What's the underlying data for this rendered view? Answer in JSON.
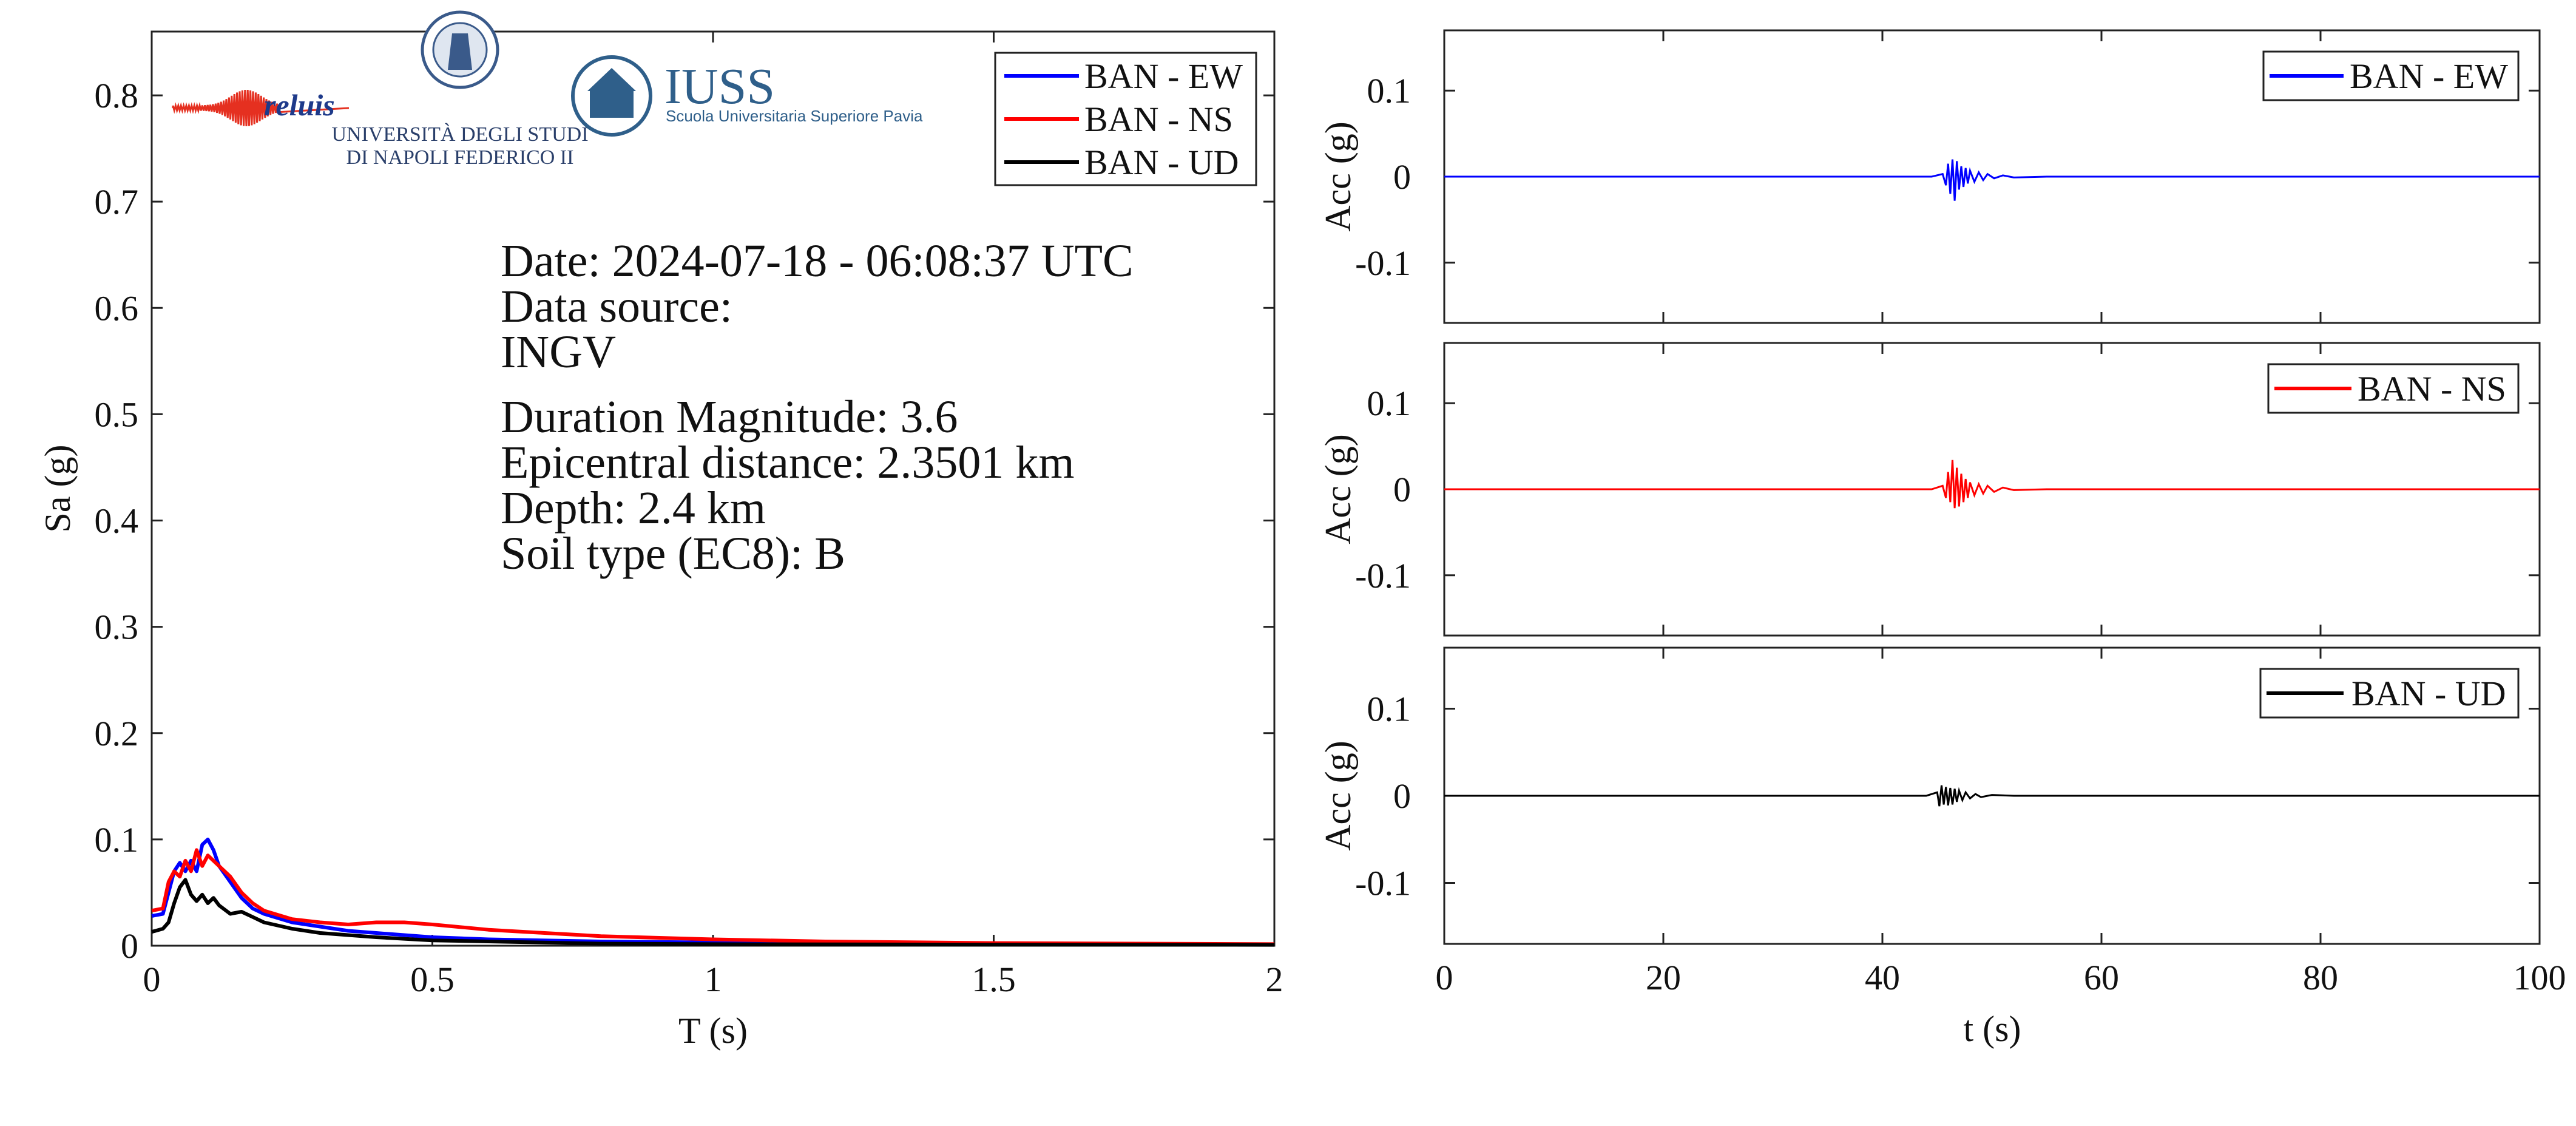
{
  "chart_data": [
    {
      "type": "line",
      "xlabel": "T (s)",
      "ylabel": "Sa (g)",
      "xlim": [
        0,
        2
      ],
      "ylim": [
        0,
        0.86
      ],
      "xticks": [
        0,
        0.5,
        1,
        1.5,
        2
      ],
      "xtick_labels": [
        "0",
        "0.5",
        "1",
        "1.5",
        "2"
      ],
      "yticks": [
        0,
        0.1,
        0.2,
        0.3,
        0.4,
        0.5,
        0.6,
        0.7,
        0.8
      ],
      "ytick_labels": [
        "0",
        "0.1",
        "0.2",
        "0.3",
        "0.4",
        "0.5",
        "0.6",
        "0.7",
        "0.8"
      ],
      "grid": false,
      "legend_position": "top-right",
      "series": [
        {
          "name": "BAN - EW",
          "color": "#0000ff",
          "x": [
            0,
            0.02,
            0.04,
            0.05,
            0.06,
            0.07,
            0.08,
            0.09,
            0.1,
            0.11,
            0.12,
            0.14,
            0.16,
            0.18,
            0.2,
            0.25,
            0.3,
            0.35,
            0.4,
            0.5,
            0.6,
            0.8,
            1.0,
            1.2,
            1.5,
            2.0
          ],
          "y": [
            0.028,
            0.03,
            0.07,
            0.078,
            0.07,
            0.08,
            0.07,
            0.095,
            0.1,
            0.09,
            0.075,
            0.06,
            0.045,
            0.035,
            0.03,
            0.022,
            0.018,
            0.014,
            0.012,
            0.008,
            0.006,
            0.004,
            0.003,
            0.002,
            0.0015,
            0.001
          ]
        },
        {
          "name": "BAN - NS",
          "color": "#ff0000",
          "x": [
            0,
            0.02,
            0.03,
            0.04,
            0.05,
            0.06,
            0.07,
            0.08,
            0.09,
            0.1,
            0.12,
            0.14,
            0.16,
            0.18,
            0.2,
            0.25,
            0.3,
            0.35,
            0.4,
            0.45,
            0.5,
            0.6,
            0.7,
            0.8,
            1.0,
            1.2,
            1.5,
            2.0
          ],
          "y": [
            0.033,
            0.035,
            0.06,
            0.07,
            0.065,
            0.08,
            0.07,
            0.09,
            0.075,
            0.085,
            0.075,
            0.065,
            0.05,
            0.04,
            0.033,
            0.025,
            0.022,
            0.02,
            0.022,
            0.022,
            0.02,
            0.015,
            0.012,
            0.009,
            0.006,
            0.004,
            0.0025,
            0.0015
          ]
        },
        {
          "name": "BAN - UD",
          "color": "#000000",
          "x": [
            0,
            0.02,
            0.03,
            0.04,
            0.05,
            0.06,
            0.07,
            0.08,
            0.09,
            0.1,
            0.11,
            0.12,
            0.14,
            0.16,
            0.18,
            0.2,
            0.25,
            0.3,
            0.35,
            0.4,
            0.5,
            0.6,
            0.8,
            1.0,
            1.5,
            2.0
          ],
          "y": [
            0.013,
            0.016,
            0.022,
            0.04,
            0.055,
            0.062,
            0.048,
            0.042,
            0.048,
            0.04,
            0.045,
            0.038,
            0.03,
            0.032,
            0.027,
            0.022,
            0.016,
            0.012,
            0.01,
            0.008,
            0.005,
            0.004,
            0.002,
            0.0015,
            0.001,
            0.0008
          ]
        }
      ]
    },
    {
      "type": "line",
      "xlabel": "",
      "ylabel": "Acc (g)",
      "xlim": [
        0,
        100
      ],
      "ylim": [
        -0.17,
        0.17
      ],
      "yticks": [
        -0.1,
        0,
        0.1
      ],
      "ytick_labels": [
        "-0.1",
        "0",
        "0.1"
      ],
      "legend_position": "top-right",
      "series": [
        {
          "name": "BAN - EW",
          "color": "#0000ff",
          "t": [
            0,
            44.5,
            45.5,
            45.8,
            46.0,
            46.2,
            46.4,
            46.6,
            46.8,
            47.0,
            47.2,
            47.4,
            47.6,
            47.8,
            48.0,
            48.4,
            48.8,
            49.2,
            49.6,
            50.2,
            51.0,
            52.0,
            55.0,
            100
          ],
          "acc": [
            0,
            0,
            0.003,
            -0.01,
            0.015,
            -0.02,
            0.02,
            -0.028,
            0.018,
            -0.015,
            0.012,
            -0.012,
            0.01,
            -0.008,
            0.007,
            -0.006,
            0.005,
            -0.004,
            0.003,
            -0.002,
            0.0015,
            -0.001,
            0,
            0
          ]
        }
      ]
    },
    {
      "type": "line",
      "xlabel": "",
      "ylabel": "Acc (g)",
      "xlim": [
        0,
        100
      ],
      "ylim": [
        -0.17,
        0.17
      ],
      "yticks": [
        -0.1,
        0,
        0.1
      ],
      "ytick_labels": [
        "-0.1",
        "0",
        "0.1"
      ],
      "legend_position": "top-right",
      "series": [
        {
          "name": "BAN - NS",
          "color": "#ff0000",
          "t": [
            0,
            44.5,
            45.5,
            45.8,
            46.0,
            46.2,
            46.4,
            46.6,
            46.8,
            47.0,
            47.2,
            47.4,
            47.6,
            47.8,
            48.0,
            48.4,
            48.8,
            49.2,
            49.6,
            50.2,
            51.0,
            52.0,
            55.0,
            100
          ],
          "acc": [
            0,
            0,
            0.004,
            -0.01,
            0.02,
            -0.015,
            0.034,
            -0.022,
            0.025,
            -0.02,
            0.018,
            -0.015,
            0.012,
            -0.01,
            0.008,
            -0.007,
            0.006,
            -0.005,
            0.004,
            -0.003,
            0.002,
            -0.001,
            0,
            0
          ]
        }
      ]
    },
    {
      "type": "line",
      "xlabel": "t (s)",
      "ylabel": "Acc (g)",
      "xlim": [
        0,
        100
      ],
      "ylim": [
        -0.17,
        0.17
      ],
      "xticks": [
        0,
        20,
        40,
        60,
        80,
        100
      ],
      "xtick_labels": [
        "0",
        "20",
        "40",
        "60",
        "80",
        "100"
      ],
      "yticks": [
        -0.1,
        0,
        0.1
      ],
      "ytick_labels": [
        "-0.1",
        "0",
        "0.1"
      ],
      "legend_position": "top-right",
      "series": [
        {
          "name": "BAN - UD",
          "color": "#000000",
          "t": [
            0,
            44.0,
            45.0,
            45.2,
            45.4,
            45.6,
            45.8,
            46.0,
            46.2,
            46.4,
            46.6,
            46.8,
            47.0,
            47.3,
            47.6,
            48.0,
            48.5,
            49.0,
            50.0,
            52.0,
            100
          ],
          "acc": [
            0,
            0,
            0.004,
            -0.012,
            0.012,
            -0.01,
            0.01,
            -0.011,
            0.009,
            -0.01,
            0.008,
            -0.007,
            0.006,
            -0.005,
            0.004,
            -0.003,
            0.002,
            -0.0015,
            0.001,
            0,
            0
          ]
        }
      ]
    }
  ],
  "info": {
    "date": "Date: 2024-07-18 - 06:08:37 UTC",
    "source_label": "Data source:",
    "source": "INGV",
    "magnitude": "Duration Magnitude: 3.6",
    "distance": "Epicentral distance: 2.3501 km",
    "depth": "Depth: 2.4 km",
    "soil": "Soil type (EC8): B"
  },
  "logos": {
    "reluis": "reluis",
    "unina_line1": "UNIVERSITÀ DEGLI STUDI",
    "unina_line2": "DI NAPOLI FEDERICO II",
    "iuss_name": "IUSS",
    "iuss_sub": "Scuola Universitaria Superiore Pavia"
  },
  "colors": {
    "ew": "#0000ff",
    "ns": "#ff0000",
    "ud": "#000000",
    "axis": "#222222",
    "iuss": "#2f5f8a"
  }
}
